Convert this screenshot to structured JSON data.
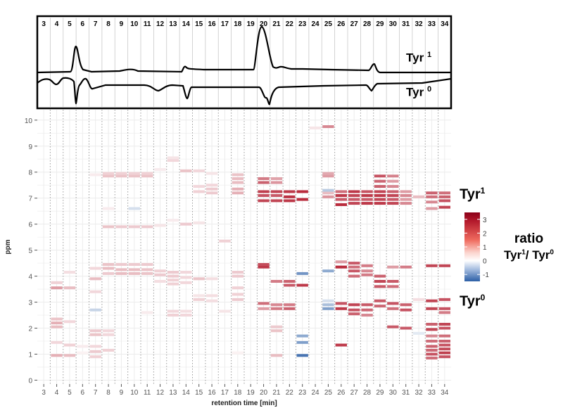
{
  "top_panel": {
    "column_labels": [
      "3",
      "4",
      "5",
      "6",
      "7",
      "8",
      "9",
      "10",
      "11",
      "12",
      "13",
      "14",
      "15",
      "16",
      "17",
      "18",
      "19",
      "20",
      "21",
      "22",
      "23",
      "24",
      "25",
      "26",
      "27",
      "28",
      "29",
      "30",
      "31",
      "32",
      "33",
      "34"
    ],
    "trace_labels": [
      {
        "base": "Tyr",
        "sup": "1"
      },
      {
        "base": "Tyr",
        "sup": "0"
      }
    ]
  },
  "side_labels": {
    "upper": {
      "base": "Tyr",
      "sup": "1"
    },
    "lower": {
      "base": "Tyr",
      "sup": "0"
    }
  },
  "legend": {
    "ticks": [
      "3",
      "2",
      "1",
      "0",
      "-1"
    ],
    "title_line1": "ratio",
    "title_line2": {
      "a": "Tyr",
      "a_sup": "1",
      "sep": "/ ",
      "b": "Tyr",
      "b_sup": "0"
    }
  },
  "colors": {
    "strong_red": "#b2182b",
    "mid_red": "#e25a57",
    "light_red": "#f6b4ad",
    "faint_red": "#fbe0dc",
    "light_blue": "#9fb7dc",
    "strong_blue": "#2c5fa6",
    "dotted_grid": "#9a9a9a",
    "solid_grid": "#ececec"
  },
  "chart_data": {
    "type": "heatmap",
    "xlabel": "retention time [min]",
    "ylabel": "ppm",
    "x_ticks": [
      3,
      4,
      5,
      6,
      7,
      8,
      9,
      10,
      11,
      12,
      13,
      14,
      15,
      16,
      17,
      18,
      19,
      20,
      21,
      22,
      23,
      24,
      25,
      26,
      27,
      28,
      29,
      30,
      31,
      32,
      33,
      34
    ],
    "y_ticks": [
      0,
      1,
      2,
      3,
      4,
      5,
      6,
      7,
      8,
      9,
      10
    ],
    "xlim": [
      2.5,
      34.5
    ],
    "ylim": [
      -0.15,
      10.4
    ],
    "color_scale": {
      "min": -1.5,
      "max": 3.5,
      "mid": 0,
      "low": "#2c5fa6",
      "mid_color": "#ffffff",
      "high": "#b2182b"
    },
    "cells": [
      [
        4,
        0.95,
        1.2
      ],
      [
        4,
        1.45,
        0.6
      ],
      [
        4,
        2.05,
        1.0
      ],
      [
        4,
        2.2,
        1.2
      ],
      [
        4,
        2.35,
        0.9
      ],
      [
        4,
        3.55,
        1.5
      ],
      [
        4,
        3.75,
        0.7
      ],
      [
        5,
        0.95,
        1.0
      ],
      [
        5,
        1.35,
        0.7
      ],
      [
        5,
        2.25,
        0.6
      ],
      [
        5,
        3.55,
        1.0
      ],
      [
        5,
        4.15,
        0.5
      ],
      [
        6,
        1.05,
        0.2
      ],
      [
        6,
        1.3,
        0.3
      ],
      [
        7,
        0.9,
        0.7
      ],
      [
        7,
        1.1,
        0.8
      ],
      [
        7,
        1.3,
        0.6
      ],
      [
        7,
        1.75,
        0.9
      ],
      [
        7,
        1.9,
        0.8
      ],
      [
        7,
        2.7,
        -0.4
      ],
      [
        7,
        3.4,
        0.6
      ],
      [
        7,
        3.9,
        1.0
      ],
      [
        7,
        4.3,
        0.6
      ],
      [
        7,
        7.9,
        0.3
      ],
      [
        8,
        1.15,
        0.7
      ],
      [
        8,
        1.75,
        0.6
      ],
      [
        8,
        1.9,
        0.6
      ],
      [
        8,
        4.1,
        0.8
      ],
      [
        8,
        4.3,
        1.0
      ],
      [
        8,
        4.45,
        0.9
      ],
      [
        8,
        5.9,
        0.9
      ],
      [
        8,
        6.6,
        0.3
      ],
      [
        8,
        7.85,
        0.9
      ],
      [
        8,
        7.95,
        0.7
      ],
      [
        9,
        4.1,
        1.0
      ],
      [
        9,
        4.25,
        1.0
      ],
      [
        9,
        4.45,
        0.8
      ],
      [
        9,
        5.9,
        0.8
      ],
      [
        9,
        7.85,
        0.9
      ],
      [
        9,
        7.95,
        0.7
      ],
      [
        10,
        4.1,
        1.0
      ],
      [
        10,
        4.25,
        1.0
      ],
      [
        10,
        4.45,
        0.8
      ],
      [
        10,
        5.9,
        0.8
      ],
      [
        10,
        6.6,
        -0.3
      ],
      [
        10,
        7.85,
        0.9
      ],
      [
        10,
        7.95,
        0.7
      ],
      [
        11,
        2.6,
        0.3
      ],
      [
        11,
        4.1,
        0.9
      ],
      [
        11,
        4.25,
        0.9
      ],
      [
        11,
        4.45,
        0.8
      ],
      [
        11,
        5.9,
        0.8
      ],
      [
        11,
        7.85,
        0.9
      ],
      [
        11,
        7.95,
        0.7
      ],
      [
        12,
        3.8,
        0.5
      ],
      [
        12,
        4.05,
        0.8
      ],
      [
        12,
        4.2,
        0.7
      ],
      [
        12,
        5.95,
        0.4
      ],
      [
        12,
        8.1,
        0.3
      ],
      [
        13,
        2.5,
        0.7
      ],
      [
        13,
        2.65,
        0.6
      ],
      [
        13,
        3.7,
        0.7
      ],
      [
        13,
        3.85,
        0.7
      ],
      [
        13,
        4.0,
        0.8
      ],
      [
        13,
        4.15,
        0.8
      ],
      [
        13,
        6.15,
        0.3
      ],
      [
        13,
        8.45,
        0.6
      ],
      [
        13,
        8.55,
        0.4
      ],
      [
        14,
        2.5,
        0.6
      ],
      [
        14,
        2.65,
        0.5
      ],
      [
        14,
        3.75,
        0.6
      ],
      [
        14,
        3.95,
        0.6
      ],
      [
        14,
        4.15,
        0.6
      ],
      [
        14,
        6.0,
        0.8
      ],
      [
        14,
        8.05,
        0.9
      ],
      [
        15,
        3.1,
        0.7
      ],
      [
        15,
        3.25,
        0.4
      ],
      [
        15,
        3.9,
        0.9
      ],
      [
        15,
        6.05,
        0.4
      ],
      [
        15,
        7.25,
        0.7
      ],
      [
        15,
        7.45,
        0.6
      ],
      [
        15,
        8.05,
        0.6
      ],
      [
        16,
        3.05,
        0.5
      ],
      [
        16,
        3.25,
        0.5
      ],
      [
        16,
        3.9,
        0.5
      ],
      [
        16,
        7.2,
        0.8
      ],
      [
        16,
        7.35,
        0.8
      ],
      [
        16,
        7.5,
        0.6
      ],
      [
        16,
        7.95,
        0.4
      ],
      [
        17,
        2.65,
        0.4
      ],
      [
        17,
        5.35,
        0.7
      ],
      [
        18,
        1.05,
        0.2
      ],
      [
        18,
        3.1,
        0.8
      ],
      [
        18,
        3.3,
        0.7
      ],
      [
        18,
        3.55,
        0.7
      ],
      [
        18,
        4.0,
        0.8
      ],
      [
        18,
        4.15,
        0.8
      ],
      [
        18,
        7.2,
        1.2
      ],
      [
        18,
        7.35,
        1.2
      ],
      [
        18,
        7.6,
        1.0
      ],
      [
        18,
        7.75,
        1.0
      ],
      [
        18,
        7.9,
        0.9
      ],
      [
        20,
        2.75,
        1.5
      ],
      [
        20,
        2.95,
        2.2
      ],
      [
        20,
        4.35,
        3.0
      ],
      [
        20,
        4.45,
        2.7
      ],
      [
        20,
        6.9,
        2.8
      ],
      [
        20,
        7.1,
        2.6
      ],
      [
        20,
        7.25,
        2.9
      ],
      [
        20,
        7.6,
        2.4
      ],
      [
        20,
        7.75,
        2.0
      ],
      [
        21,
        0.95,
        1.0
      ],
      [
        21,
        1.9,
        0.9
      ],
      [
        21,
        2.05,
        0.8
      ],
      [
        21,
        2.75,
        2.0
      ],
      [
        21,
        2.9,
        1.8
      ],
      [
        21,
        3.8,
        2.0
      ],
      [
        21,
        6.9,
        2.8
      ],
      [
        21,
        7.1,
        2.5
      ],
      [
        21,
        7.25,
        2.8
      ],
      [
        21,
        7.6,
        1.6
      ],
      [
        21,
        7.75,
        1.4
      ],
      [
        22,
        2.75,
        2.4
      ],
      [
        22,
        2.9,
        2.0
      ],
      [
        22,
        3.65,
        2.5
      ],
      [
        22,
        3.8,
        2.4
      ],
      [
        22,
        6.9,
        3.0
      ],
      [
        22,
        7.05,
        3.1
      ],
      [
        22,
        7.25,
        3.0
      ],
      [
        23,
        0.95,
        -1.3
      ],
      [
        23,
        1.45,
        -0.9
      ],
      [
        23,
        1.7,
        -0.8
      ],
      [
        23,
        3.65,
        3.0
      ],
      [
        23,
        4.1,
        -1.0
      ],
      [
        23,
        6.95,
        3.2
      ],
      [
        23,
        7.25,
        3.2
      ],
      [
        24,
        9.7,
        0.4
      ],
      [
        25,
        2.75,
        -0.9
      ],
      [
        25,
        2.9,
        -0.6
      ],
      [
        25,
        3.05,
        -0.3
      ],
      [
        25,
        4.2,
        -0.8
      ],
      [
        25,
        7.05,
        1.6
      ],
      [
        25,
        7.2,
        1.0
      ],
      [
        25,
        7.3,
        -0.5
      ],
      [
        25,
        7.85,
        1.5
      ],
      [
        25,
        7.95,
        1.3
      ],
      [
        25,
        9.75,
        1.8
      ],
      [
        26,
        1.35,
        3.0
      ],
      [
        26,
        2.75,
        3.0
      ],
      [
        26,
        2.95,
        2.6
      ],
      [
        26,
        4.35,
        3.2
      ],
      [
        26,
        4.55,
        1.5
      ],
      [
        26,
        6.75,
        3.2
      ],
      [
        26,
        6.95,
        2.5
      ],
      [
        26,
        7.1,
        3.0
      ],
      [
        26,
        7.25,
        2.2
      ],
      [
        27,
        2.55,
        2.4
      ],
      [
        27,
        2.7,
        2.6
      ],
      [
        27,
        2.9,
        2.8
      ],
      [
        27,
        4.0,
        2.2
      ],
      [
        27,
        4.2,
        2.5
      ],
      [
        27,
        4.35,
        2.2
      ],
      [
        27,
        4.5,
        2.5
      ],
      [
        27,
        6.8,
        2.8
      ],
      [
        27,
        6.95,
        2.5
      ],
      [
        27,
        7.1,
        2.8
      ],
      [
        27,
        7.25,
        3.0
      ],
      [
        28,
        2.5,
        1.8
      ],
      [
        28,
        2.7,
        2.3
      ],
      [
        28,
        2.9,
        2.5
      ],
      [
        28,
        4.05,
        2.0
      ],
      [
        28,
        4.2,
        1.8
      ],
      [
        28,
        4.4,
        2.0
      ],
      [
        28,
        6.8,
        3.0
      ],
      [
        28,
        6.95,
        2.5
      ],
      [
        28,
        7.1,
        3.0
      ],
      [
        28,
        7.25,
        2.6
      ],
      [
        29,
        2.85,
        2.3
      ],
      [
        29,
        3.05,
        2.5
      ],
      [
        29,
        3.6,
        2.5
      ],
      [
        29,
        3.8,
        2.8
      ],
      [
        29,
        4.0,
        2.4
      ],
      [
        29,
        6.8,
        3.0
      ],
      [
        29,
        6.95,
        2.8
      ],
      [
        29,
        7.1,
        3.0
      ],
      [
        29,
        7.25,
        2.8
      ],
      [
        29,
        7.45,
        2.4
      ],
      [
        29,
        7.65,
        2.3
      ],
      [
        29,
        7.85,
        2.6
      ],
      [
        30,
        2.05,
        2.5
      ],
      [
        30,
        2.75,
        2.2
      ],
      [
        30,
        2.95,
        2.6
      ],
      [
        30,
        3.6,
        2.2
      ],
      [
        30,
        3.8,
        2.5
      ],
      [
        30,
        4.35,
        1.5
      ],
      [
        30,
        6.8,
        2.8
      ],
      [
        30,
        6.95,
        2.5
      ],
      [
        30,
        7.1,
        2.8
      ],
      [
        30,
        7.25,
        2.4
      ],
      [
        30,
        7.45,
        1.8
      ],
      [
        30,
        7.65,
        1.5
      ],
      [
        30,
        7.85,
        1.9
      ],
      [
        31,
        2.0,
        2.5
      ],
      [
        31,
        2.7,
        2.6
      ],
      [
        31,
        2.9,
        2.4
      ],
      [
        31,
        4.35,
        2.0
      ],
      [
        31,
        6.8,
        1.8
      ],
      [
        31,
        6.95,
        1.5
      ],
      [
        31,
        7.1,
        1.8
      ],
      [
        31,
        7.25,
        1.5
      ],
      [
        32,
        1.8,
        -0.2
      ],
      [
        32,
        3.1,
        0.5
      ],
      [
        32,
        7.05,
        1.0
      ],
      [
        33,
        0.85,
        2.2
      ],
      [
        33,
        1.0,
        2.6
      ],
      [
        33,
        1.15,
        2.3
      ],
      [
        33,
        1.3,
        2.4
      ],
      [
        33,
        1.5,
        2.2
      ],
      [
        33,
        1.7,
        1.8
      ],
      [
        33,
        1.95,
        2.8
      ],
      [
        33,
        2.15,
        2.4
      ],
      [
        33,
        2.75,
        2.8
      ],
      [
        33,
        3.05,
        2.8
      ],
      [
        33,
        4.4,
        2.8
      ],
      [
        33,
        6.6,
        1.5
      ],
      [
        33,
        6.85,
        1.8
      ],
      [
        33,
        7.05,
        2.2
      ],
      [
        33,
        7.2,
        2.4
      ],
      [
        34,
        0.9,
        2.6
      ],
      [
        34,
        1.05,
        2.9
      ],
      [
        34,
        1.2,
        2.7
      ],
      [
        34,
        1.35,
        2.6
      ],
      [
        34,
        1.5,
        2.4
      ],
      [
        34,
        1.7,
        2.2
      ],
      [
        34,
        2.0,
        2.6
      ],
      [
        34,
        2.15,
        2.8
      ],
      [
        34,
        2.6,
        2.0
      ],
      [
        34,
        2.75,
        2.6
      ],
      [
        34,
        3.1,
        2.6
      ],
      [
        34,
        4.4,
        2.8
      ],
      [
        34,
        6.65,
        2.8
      ],
      [
        34,
        6.9,
        2.6
      ],
      [
        34,
        7.05,
        2.4
      ],
      [
        34,
        7.2,
        2.2
      ]
    ]
  }
}
